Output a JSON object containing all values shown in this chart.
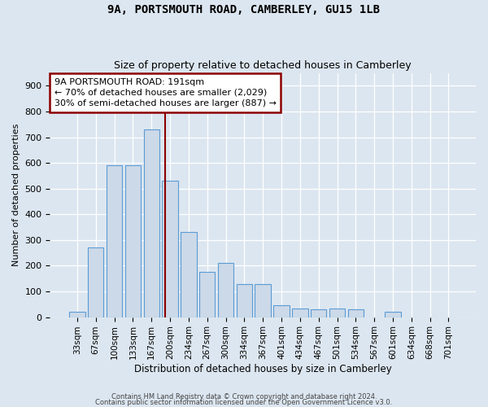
{
  "title1": "9A, PORTSMOUTH ROAD, CAMBERLEY, GU15 1LB",
  "title2": "Size of property relative to detached houses in Camberley",
  "xlabel": "Distribution of detached houses by size in Camberley",
  "ylabel": "Number of detached properties",
  "categories": [
    "33sqm",
    "67sqm",
    "100sqm",
    "133sqm",
    "167sqm",
    "200sqm",
    "234sqm",
    "267sqm",
    "300sqm",
    "334sqm",
    "367sqm",
    "401sqm",
    "434sqm",
    "467sqm",
    "501sqm",
    "534sqm",
    "567sqm",
    "601sqm",
    "634sqm",
    "668sqm",
    "701sqm"
  ],
  "values": [
    20,
    270,
    590,
    590,
    730,
    530,
    330,
    175,
    210,
    130,
    130,
    45,
    35,
    30,
    35,
    30,
    0,
    20,
    0,
    0,
    0
  ],
  "bar_color": "#ccd9e8",
  "bar_edge_color": "#5b9bd5",
  "vline_x": 4.72,
  "vline_color": "#8b0000",
  "annotation_text": "9A PORTSMOUTH ROAD: 191sqm\n← 70% of detached houses are smaller (2,029)\n30% of semi-detached houses are larger (887) →",
  "annotation_box_color": "#ffffff",
  "annotation_box_edge": "#8b0000",
  "footer1": "Contains HM Land Registry data © Crown copyright and database right 2024.",
  "footer2": "Contains public sector information licensed under the Open Government Licence v3.0.",
  "ylim": [
    0,
    950
  ],
  "yticks": [
    0,
    100,
    200,
    300,
    400,
    500,
    600,
    700,
    800,
    900
  ],
  "background_color": "#dce6f0",
  "plot_bg_color": "#dce6f0",
  "grid_color": "#ffffff"
}
